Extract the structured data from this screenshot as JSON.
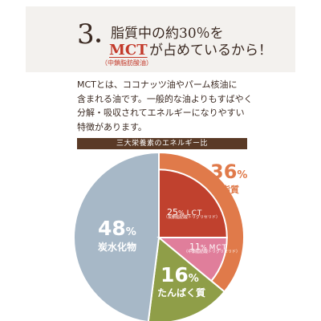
{
  "header": {
    "number": "3",
    "title_line1": "脂質中の約30％を",
    "title_mct": "MCT",
    "title_line2_rest": "が占めているから！",
    "note": "（中鎖脂肪酸油）"
  },
  "body_lines": [
    "MCTとは、ココナッツ油やパーム核油に",
    "含まれる油です。一般的な油よりもすばやく",
    "分解・吸収されてエネルギーになりやすい",
    "特徴があります。"
  ],
  "chart_title": "三大栄養素のエネルギー比",
  "chart_data": {
    "type": "pie",
    "title": "三大栄養素のエネルギー比",
    "slices": [
      {
        "name": "脂質",
        "value": 36,
        "value_label": "36%",
        "color": "#e07a4a"
      },
      {
        "name": "たんぱく質",
        "value": 16,
        "value_label": "16%",
        "color": "#8f9e48"
      },
      {
        "name": "炭水化物",
        "value": 48,
        "value_label": "48%",
        "color": "#a7b8c7"
      }
    ],
    "sub_slices_of_fat": [
      {
        "name": "LCT",
        "value": 25,
        "value_label": "25%",
        "note": "（長鎖脂肪酸トリグリセリド）",
        "color": "#c0412e"
      },
      {
        "name": "MCT",
        "value": 11,
        "value_label": "11%",
        "note": "（中鎖脂肪酸トリグリセリド）",
        "color": "#e07e9b"
      }
    ]
  },
  "labels": {
    "fat_pct": "36",
    "fat_pct_unit": "%",
    "fat_name": "脂質",
    "lct_pct": "25",
    "lct_unit": "%",
    "lct_name": "LCT",
    "lct_note": "（長鎖脂肪酸トリグリセリド）",
    "mct_pct": "11",
    "mct_unit": "%",
    "mct_name": "MCT",
    "mct_note": "（中鎖脂肪酸トリグリセリド）",
    "carb_pct": "48",
    "carb_unit": "%",
    "carb_name": "炭水化物",
    "protein_pct": "16",
    "protein_unit": "%",
    "protein_name": "たんぱく質"
  }
}
